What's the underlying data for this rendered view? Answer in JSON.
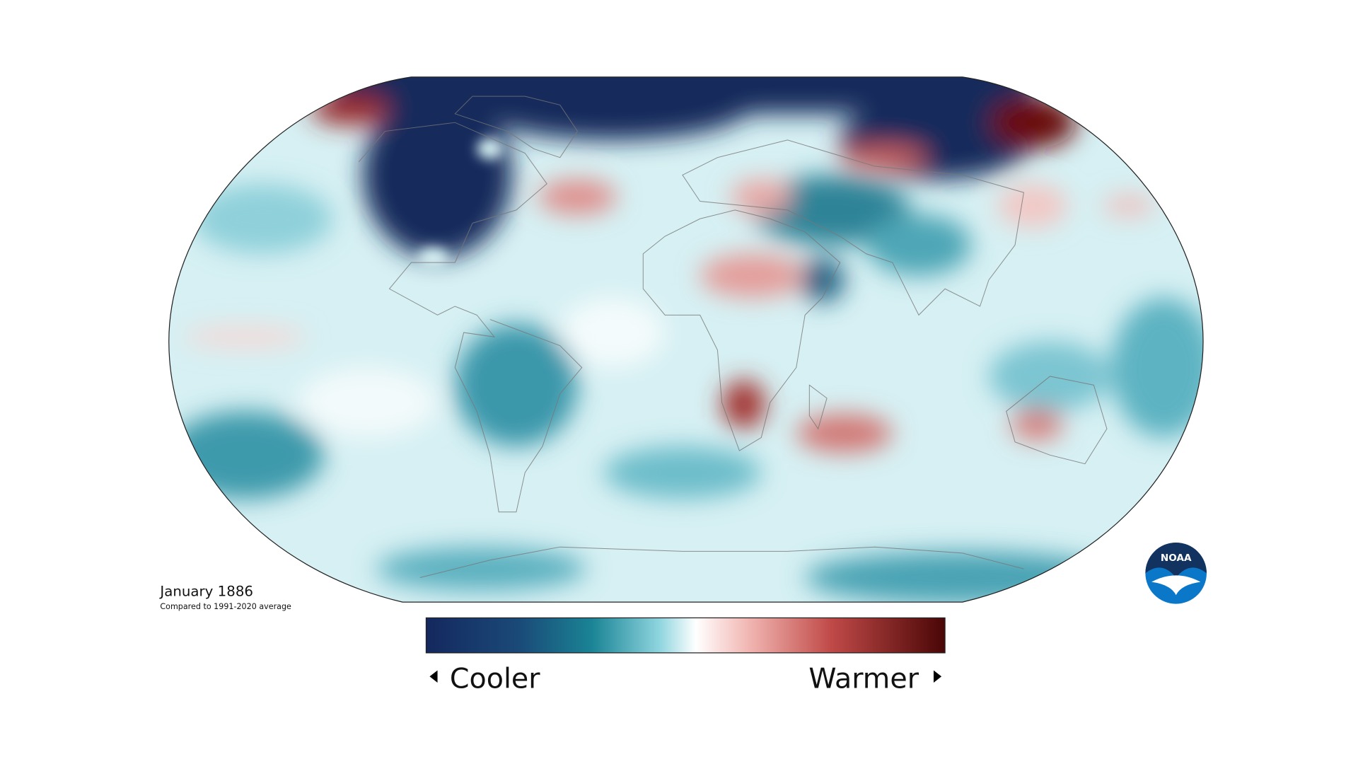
{
  "header": {
    "title": "January 1886",
    "subtitle": "Compared to 1991-2020 average"
  },
  "legend": {
    "low_label": "Cooler",
    "high_label": "Warmer"
  },
  "logo": {
    "text": "NOAA"
  }
}
